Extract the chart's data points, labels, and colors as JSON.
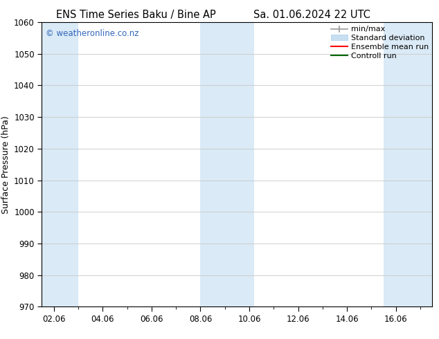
{
  "title_left": "ENS Time Series Baku / Bine AP",
  "title_right": "Sa. 01.06.2024 22 UTC",
  "ylabel": "Surface Pressure (hPa)",
  "ylim": [
    970,
    1060
  ],
  "yticks": [
    970,
    980,
    990,
    1000,
    1010,
    1020,
    1030,
    1040,
    1050,
    1060
  ],
  "xlim_start": 1.5,
  "xlim_end": 17.5,
  "xtick_labels": [
    "02.06",
    "04.06",
    "06.06",
    "08.06",
    "10.06",
    "12.06",
    "14.06",
    "16.06"
  ],
  "xtick_positions": [
    2,
    4,
    6,
    8,
    10,
    12,
    14,
    16
  ],
  "shaded_bands": [
    {
      "x_start": 1.5,
      "x_end": 3.0
    },
    {
      "x_start": 8.0,
      "x_end": 10.2
    },
    {
      "x_start": 15.5,
      "x_end": 17.5
    }
  ],
  "shade_color": "#daeaf6",
  "bg_color": "#ffffff",
  "grid_color": "#c8c8c8",
  "watermark_text": "© weatheronline.co.nz",
  "watermark_color": "#3366bb",
  "legend_entries": [
    {
      "label": "min/max",
      "color": "#aaaaaa",
      "lw": 1.2
    },
    {
      "label": "Standard deviation",
      "color": "#c8dff0",
      "lw": 8
    },
    {
      "label": "Ensemble mean run",
      "color": "#ff0000",
      "lw": 1.5
    },
    {
      "label": "Controll run",
      "color": "#006600",
      "lw": 1.5
    }
  ],
  "title_fontsize": 10.5,
  "tick_fontsize": 8.5,
  "label_fontsize": 9,
  "watermark_fontsize": 8.5,
  "legend_fontsize": 8
}
